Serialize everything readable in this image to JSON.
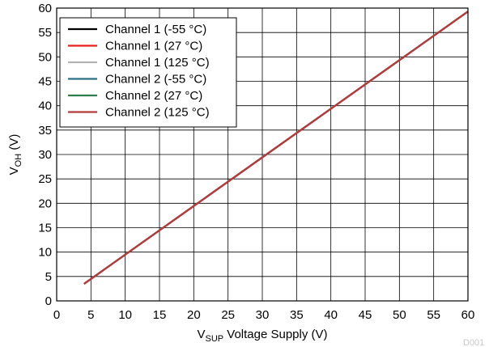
{
  "chart_data": {
    "type": "line",
    "x_label_prefix": "V",
    "x_label_sub": "SUP",
    "x_label_suffix": " Voltage Supply (V)",
    "y_label_prefix": "V",
    "y_label_sub": "OH",
    "y_label_suffix": " (V)",
    "xlim": [
      0,
      60
    ],
    "ylim": [
      0,
      60
    ],
    "xticks": [
      0,
      5,
      10,
      15,
      20,
      25,
      30,
      35,
      40,
      45,
      50,
      55,
      60
    ],
    "yticks": [
      0,
      5,
      10,
      15,
      20,
      25,
      30,
      35,
      40,
      45,
      50,
      55,
      60
    ],
    "grid": true,
    "legend_position": "top-left",
    "series": [
      {
        "name": "Channel 1 (-55 °C)",
        "color": "#000000",
        "x": [
          4,
          60
        ],
        "y": [
          3.5,
          59.3
        ]
      },
      {
        "name": "Channel 1 (27 °C)",
        "color": "#e8201c",
        "x": [
          4,
          60
        ],
        "y": [
          3.5,
          59.3
        ]
      },
      {
        "name": "Channel 1 (125 °C)",
        "color": "#b4b4b4",
        "x": [
          4,
          60
        ],
        "y": [
          3.5,
          59.3
        ]
      },
      {
        "name": "Channel 2 (-55 °C)",
        "color": "#2f6f86",
        "x": [
          4,
          60
        ],
        "y": [
          3.5,
          59.3
        ]
      },
      {
        "name": "Channel 2 (27 °C)",
        "color": "#2e7d4a",
        "x": [
          4,
          60
        ],
        "y": [
          3.5,
          59.3
        ]
      },
      {
        "name": "Channel 2 (125 °C)",
        "color": "#b23a3a",
        "x": [
          4,
          60
        ],
        "y": [
          3.5,
          59.3
        ]
      }
    ]
  },
  "watermark": "D001"
}
